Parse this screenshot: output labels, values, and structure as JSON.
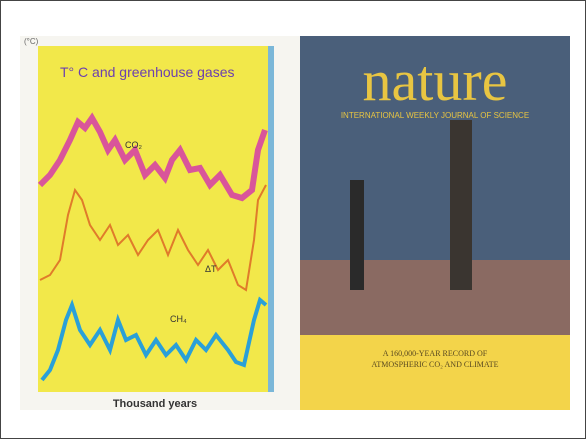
{
  "left_image": {
    "caption": "T° C and greenhouse gases",
    "unit_left": "(°C)",
    "x_axis_label": "Thousand years",
    "curve_labels": [
      "CO₂",
      "ΔT",
      "CH₄"
    ]
  },
  "right_image": {
    "masthead": "nature",
    "subtitle": "INTERNATIONAL WEEKLY JOURNAL OF SCIENCE",
    "cover_text": [
      "A 160,000-YEAR RECORD OF",
      "ATMOSPHERIC CO₂ AND CLIMATE"
    ]
  }
}
